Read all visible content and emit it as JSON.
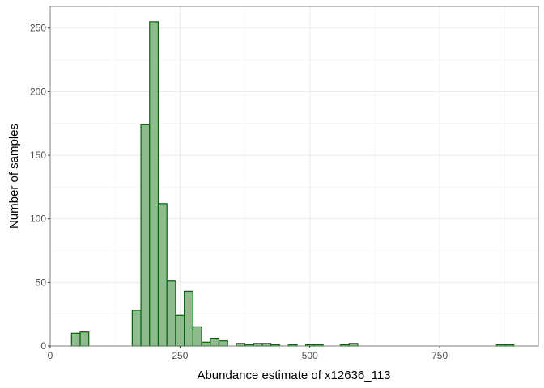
{
  "chart_data": {
    "type": "bar",
    "title": "",
    "xlabel": "Abundance estimate of x12636_113",
    "ylabel": "Number of samples",
    "xlim": [
      0,
      940
    ],
    "ylim": [
      0,
      267
    ],
    "x_ticks": [
      0,
      250,
      500,
      750
    ],
    "x_tick_labels": [
      "0",
      "250",
      "500",
      "750"
    ],
    "y_ticks": [
      0,
      50,
      100,
      150,
      200,
      250
    ],
    "y_tick_labels": [
      "0",
      "50",
      "100",
      "150",
      "200",
      "250"
    ],
    "bin_width": 16.7,
    "grid": true,
    "legend": "none",
    "fill_color": "#8fbc8f",
    "stroke_color": "#006400",
    "bins": [
      {
        "x0": 41.0,
        "count": 10
      },
      {
        "x0": 57.7,
        "count": 11
      },
      {
        "x0": 158.0,
        "count": 28
      },
      {
        "x0": 174.7,
        "count": 174
      },
      {
        "x0": 191.4,
        "count": 255
      },
      {
        "x0": 208.1,
        "count": 112
      },
      {
        "x0": 224.8,
        "count": 51
      },
      {
        "x0": 241.5,
        "count": 24
      },
      {
        "x0": 258.2,
        "count": 43
      },
      {
        "x0": 274.9,
        "count": 15
      },
      {
        "x0": 291.6,
        "count": 3
      },
      {
        "x0": 308.3,
        "count": 6
      },
      {
        "x0": 325.0,
        "count": 4
      },
      {
        "x0": 358.4,
        "count": 2
      },
      {
        "x0": 375.1,
        "count": 1
      },
      {
        "x0": 391.8,
        "count": 2
      },
      {
        "x0": 408.5,
        "count": 2
      },
      {
        "x0": 425.2,
        "count": 1
      },
      {
        "x0": 458.6,
        "count": 1
      },
      {
        "x0": 492.0,
        "count": 1
      },
      {
        "x0": 508.7,
        "count": 1
      },
      {
        "x0": 558.8,
        "count": 1
      },
      {
        "x0": 575.5,
        "count": 2
      },
      {
        "x0": 859.4,
        "count": 1
      },
      {
        "x0": 876.1,
        "count": 1
      }
    ]
  }
}
